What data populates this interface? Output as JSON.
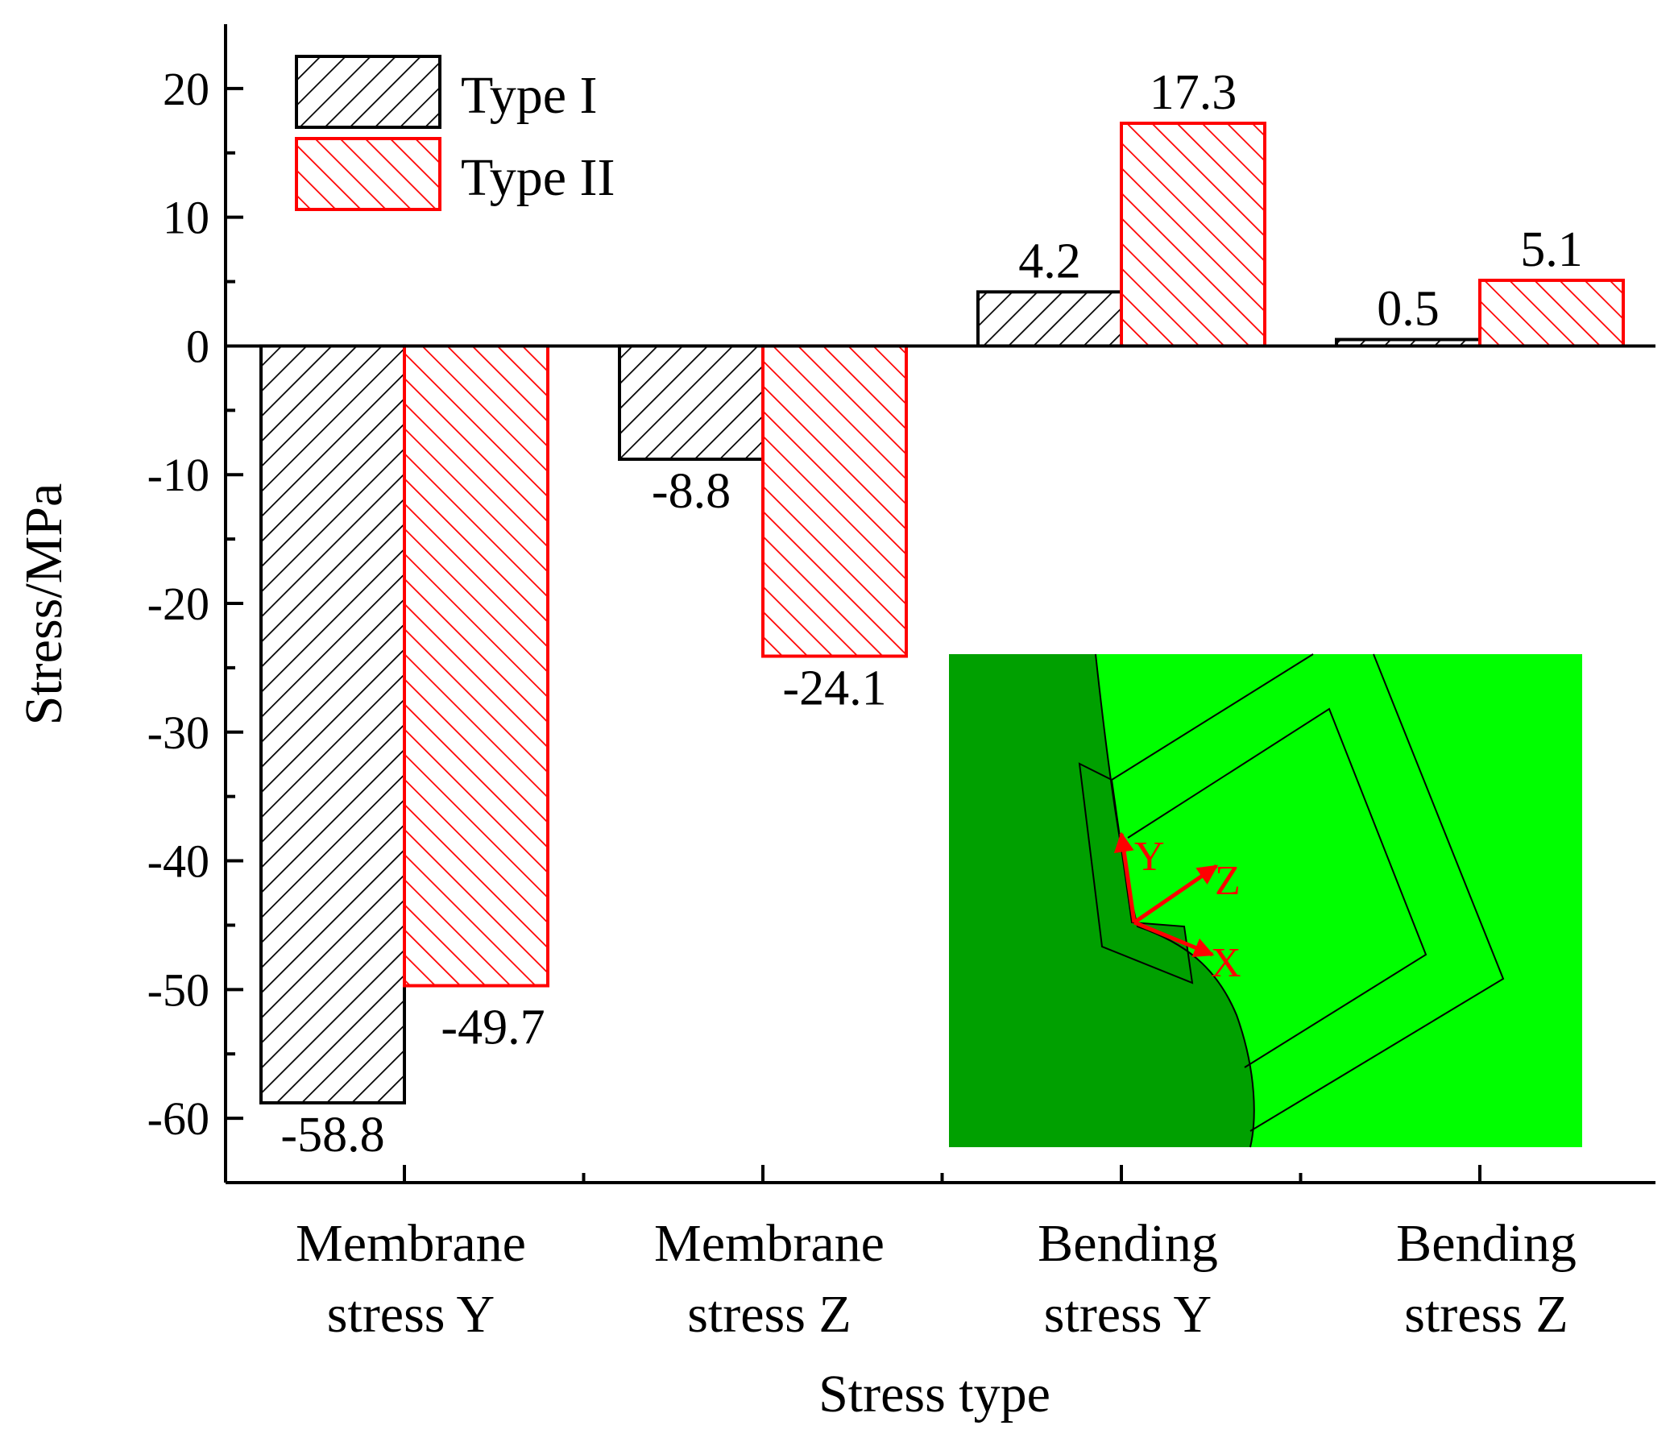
{
  "chart_data": {
    "type": "bar",
    "xlabel": "Stress type",
    "ylabel": "Stress/MPa",
    "ylim": [
      -65,
      25
    ],
    "yticks": [
      20,
      10,
      0,
      -10,
      -20,
      -30,
      -40,
      -50,
      -60
    ],
    "categories": [
      [
        "Membrane",
        "stress Y"
      ],
      [
        "Membrane",
        "stress Z"
      ],
      [
        "Bending",
        "stress Y"
      ],
      [
        "Bending",
        "stress Z"
      ]
    ],
    "series": [
      {
        "name": "Type I",
        "values": [
          -58.8,
          -8.8,
          4.2,
          0.5
        ],
        "labels": [
          "-58.8",
          "-8.8",
          "4.2",
          "0.5"
        ],
        "color": "#000000",
        "hatch": "forward-diagonal"
      },
      {
        "name": "Type II",
        "values": [
          -49.7,
          -24.1,
          17.3,
          5.1
        ],
        "labels": [
          "-49.7",
          "-24.1",
          "17.3",
          "5.1"
        ],
        "color": "#ff0000",
        "hatch": "backward-diagonal"
      }
    ],
    "legend_position": "top-left",
    "inset": {
      "description": "finite element model with local coordinate system",
      "axes": [
        "Y",
        "Z",
        "X"
      ],
      "colors": {
        "dark": "#00a000",
        "light": "#00ff00",
        "arrow": "#ff0000"
      }
    }
  }
}
